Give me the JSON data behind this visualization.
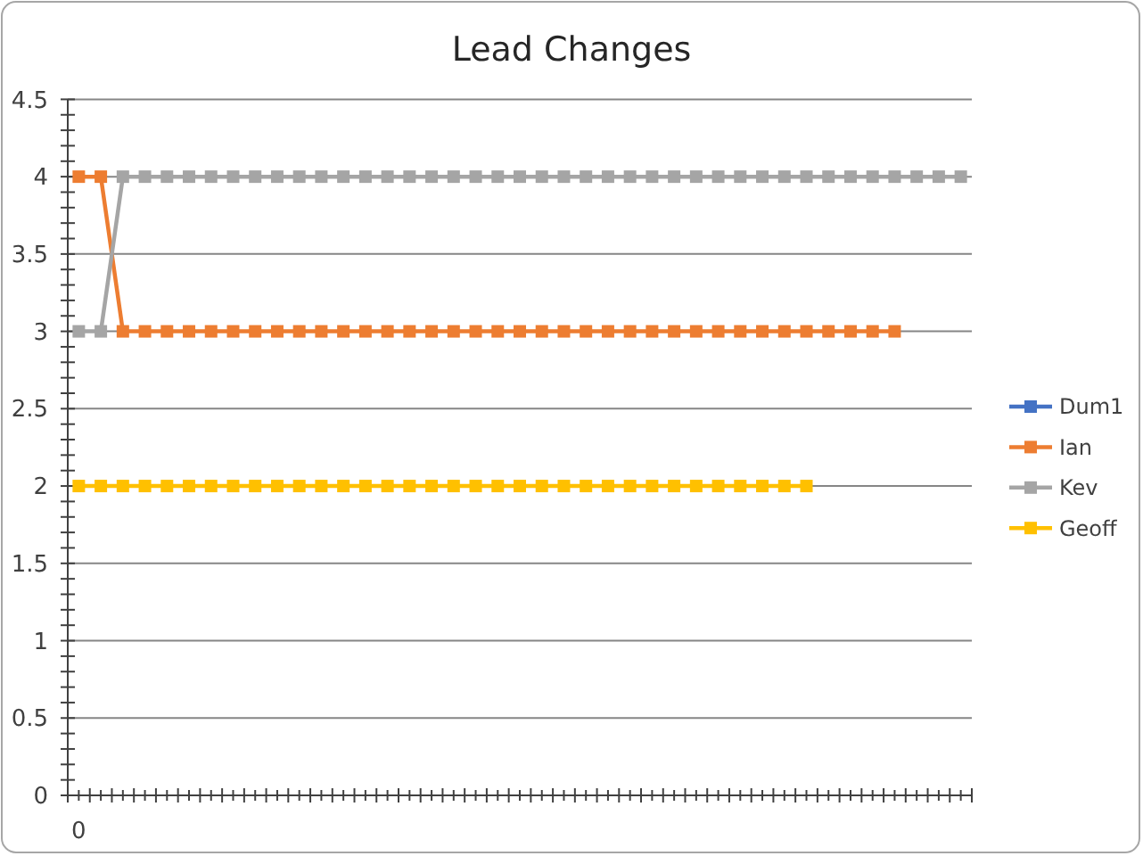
{
  "chart_data": {
    "type": "line",
    "title": "Lead Changes",
    "categories": [
      "0",
      null,
      null,
      null,
      null,
      null,
      null,
      null,
      null,
      null,
      null,
      null,
      null,
      null,
      null,
      null,
      null,
      null,
      null,
      null,
      null,
      null,
      null,
      null,
      null,
      null,
      null,
      null,
      null,
      null,
      null,
      null,
      null,
      null,
      null,
      null,
      null,
      null,
      null,
      null,
      null
    ],
    "series": [
      {
        "name": "Dum1",
        "color": "#4472c4",
        "values": [
          null,
          null,
          null,
          null,
          null,
          null,
          null,
          null,
          null,
          null,
          null,
          null,
          null,
          null,
          null,
          null,
          null,
          null,
          null,
          null,
          null,
          null,
          null,
          null,
          null,
          null,
          null,
          null,
          null,
          null,
          null,
          null,
          null,
          null,
          null,
          null,
          null,
          null,
          null,
          null,
          null
        ]
      },
      {
        "name": "Ian",
        "color": "#ed7d31",
        "values": [
          4,
          4,
          3,
          3,
          3,
          3,
          3,
          3,
          3,
          3,
          3,
          3,
          3,
          3,
          3,
          3,
          3,
          3,
          3,
          3,
          3,
          3,
          3,
          3,
          3,
          3,
          3,
          3,
          3,
          3,
          3,
          3,
          3,
          3,
          3,
          3,
          3,
          3,
          null,
          null,
          null
        ]
      },
      {
        "name": "Kev",
        "color": "#a5a5a5",
        "values": [
          3,
          3,
          4,
          4,
          4,
          4,
          4,
          4,
          4,
          4,
          4,
          4,
          4,
          4,
          4,
          4,
          4,
          4,
          4,
          4,
          4,
          4,
          4,
          4,
          4,
          4,
          4,
          4,
          4,
          4,
          4,
          4,
          4,
          4,
          4,
          4,
          4,
          4,
          4,
          4,
          4
        ]
      },
      {
        "name": "Geoff",
        "color": "#ffc000",
        "values": [
          2,
          2,
          2,
          2,
          2,
          2,
          2,
          2,
          2,
          2,
          2,
          2,
          2,
          2,
          2,
          2,
          2,
          2,
          2,
          2,
          2,
          2,
          2,
          2,
          2,
          2,
          2,
          2,
          2,
          2,
          2,
          2,
          2,
          2,
          null,
          null,
          null,
          null,
          null,
          null,
          null
        ]
      }
    ],
    "ylim": [
      0,
      4.5
    ],
    "yticks": [
      0,
      {
        "value": 0.1,
        "label": null
      },
      {
        "value": 0.2,
        "label": null
      },
      {
        "value": 0.3,
        "label": null
      },
      {
        "value": 0.4,
        "label": null
      },
      0.5,
      {
        "value": 0.6,
        "label": null
      },
      {
        "value": 0.7,
        "label": null
      },
      {
        "value": 0.8,
        "label": null
      },
      {
        "value": 0.9,
        "label": null
      },
      1,
      {
        "value": 1.1,
        "label": null
      },
      {
        "value": 1.2,
        "label": null
      },
      {
        "value": 1.3,
        "label": null
      },
      {
        "value": 1.4,
        "label": null
      },
      1.5,
      {
        "value": 1.6,
        "label": null
      },
      {
        "value": 1.7,
        "label": null
      },
      {
        "value": 1.8,
        "label": null
      },
      {
        "value": 1.9,
        "label": null
      },
      2,
      {
        "value": 2.1,
        "label": null
      },
      {
        "value": 2.2,
        "label": null
      },
      {
        "value": 2.3,
        "label": null
      },
      {
        "value": 2.4,
        "label": null
      },
      2.5,
      {
        "value": 2.6,
        "label": null
      },
      {
        "value": 2.7,
        "label": null
      },
      {
        "value": 2.8,
        "label": null
      },
      {
        "value": 2.9,
        "label": null
      },
      3,
      {
        "value": 3.1,
        "label": null
      },
      {
        "value": 3.2,
        "label": null
      },
      {
        "value": 3.3,
        "label": null
      },
      {
        "value": 3.4,
        "label": null
      },
      3.5,
      {
        "value": 3.6,
        "label": null
      },
      {
        "value": 3.7,
        "label": null
      },
      {
        "value": 3.8,
        "label": null
      },
      {
        "value": 3.9,
        "label": null
      },
      4,
      {
        "value": 4.1,
        "label": null
      },
      {
        "value": 4.2,
        "label": null
      },
      {
        "value": 4.3,
        "label": null
      },
      {
        "value": 4.4,
        "label": null
      },
      4.5
    ],
    "grid": "y",
    "legend": "right",
    "marker": "square",
    "line_style": "solid"
  }
}
